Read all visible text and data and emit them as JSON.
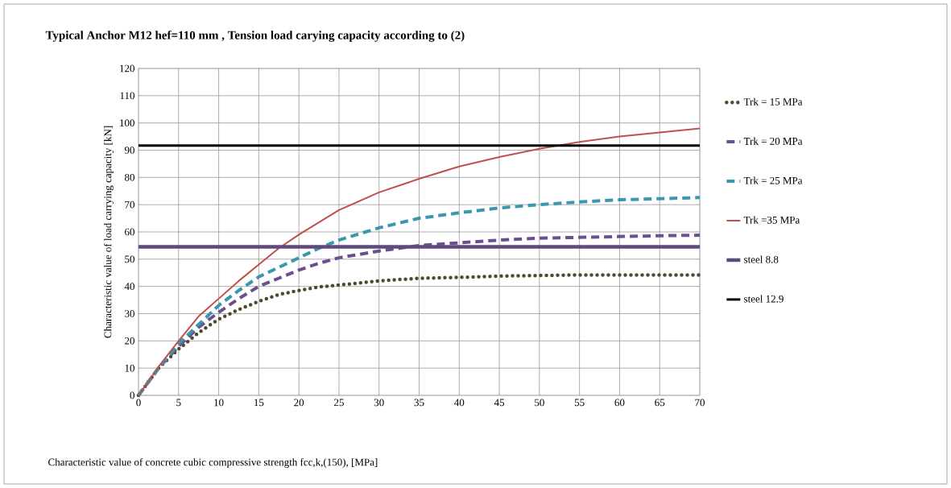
{
  "chart_data": {
    "type": "line",
    "title": "Typical Anchor M12 hef=110 mm ,  Tension load carying capacity according to (2)",
    "xlabel": "Characteristic  value of concrete cubic compressive strength  fcc,k,(150), [MPa]",
    "ylabel": "Characteristic value of load carrying capacity [kN]",
    "x": [
      0,
      2.5,
      5,
      7.5,
      10,
      12.5,
      15,
      17.5,
      20,
      22.5,
      25,
      30,
      35,
      40,
      45,
      50,
      55,
      60,
      65,
      70
    ],
    "series": [
      {
        "name": "Trk = 15 MPa",
        "color": "#4d4a2e",
        "line_style": "dotted",
        "values": [
          0,
          10,
          17,
          23,
          28,
          31.5,
          34.5,
          37,
          38.5,
          39.8,
          40.5,
          42,
          43,
          43.3,
          43.8,
          44,
          44.2,
          44.2,
          44.2,
          44.2
        ]
      },
      {
        "name": "Trk = 20 MPa",
        "color": "#6b4f8f",
        "line_style": "dashed",
        "values": [
          0,
          10,
          18,
          25,
          30.5,
          35.5,
          40,
          43,
          46,
          48.5,
          50.5,
          53,
          55,
          56,
          57,
          57.7,
          58,
          58.3,
          58.6,
          58.8
        ]
      },
      {
        "name": "Trk = 25 MPa",
        "color": "#3a98ab",
        "line_style": "dashed",
        "values": [
          0,
          10,
          19,
          26,
          33,
          38.5,
          43.5,
          47,
          50.5,
          54,
          57,
          61.5,
          65,
          67,
          68.8,
          70,
          71,
          71.8,
          72.2,
          72.6
        ]
      },
      {
        "name": "Trk =35 MPa",
        "color": "#c0504d",
        "line_style": "solid",
        "values": [
          0,
          10.5,
          20,
          29,
          35.5,
          42,
          48,
          54,
          59,
          63.5,
          68,
          74.5,
          79.5,
          84,
          87.5,
          90.5,
          93,
          95,
          96.5,
          98
        ]
      }
    ],
    "ref_lines": [
      {
        "axis": "y",
        "value": 54.5,
        "label": "steel 8.8",
        "color": "#5f4b7b"
      },
      {
        "axis": "y",
        "value": 91.7,
        "label": "steel 12.9",
        "color": "#000000"
      }
    ],
    "xlim": [
      0,
      70
    ],
    "xticks": [
      0,
      5,
      10,
      15,
      20,
      25,
      30,
      35,
      40,
      45,
      50,
      55,
      60,
      65,
      70
    ],
    "ylim": [
      0,
      120
    ],
    "yticks": [
      0,
      10,
      20,
      30,
      40,
      50,
      60,
      70,
      80,
      90,
      100,
      110,
      120
    ],
    "grid": true,
    "legend": "right",
    "marker": "none"
  }
}
